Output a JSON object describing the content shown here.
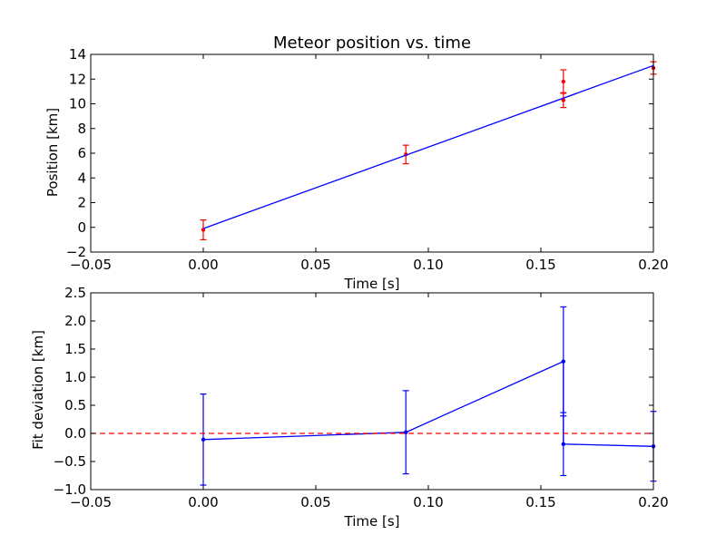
{
  "chart_data": [
    {
      "type": "line",
      "title": "Meteor position vs. time",
      "xlabel": "Time [s]",
      "ylabel": "Position [km]",
      "xlim": [
        -0.05,
        0.2
      ],
      "ylim": [
        -2,
        14
      ],
      "xticks": [
        "−0.05",
        "0.00",
        "0.05",
        "0.10",
        "0.15",
        "0.20"
      ],
      "xtick_values": [
        -0.05,
        0.0,
        0.05,
        0.1,
        0.15,
        0.2
      ],
      "yticks": [
        "−2",
        "0",
        "2",
        "4",
        "6",
        "8",
        "10",
        "12",
        "14"
      ],
      "ytick_values": [
        -2,
        0,
        2,
        4,
        6,
        8,
        10,
        12,
        14
      ],
      "series": [
        {
          "kind": "errorbar",
          "color": "#ff0000",
          "x": [
            0.0,
            0.09,
            0.16,
            0.16,
            0.2
          ],
          "y": [
            -0.2,
            5.9,
            11.8,
            10.3,
            12.9
          ],
          "yerr": [
            0.8,
            0.75,
            0.95,
            0.6,
            0.5
          ]
        },
        {
          "kind": "fit-line",
          "color": "#0000ff",
          "x": [
            0.0,
            0.2
          ],
          "y": [
            -0.1,
            13.1
          ]
        }
      ]
    },
    {
      "type": "line",
      "title": "",
      "xlabel": "Time [s]",
      "ylabel": "Fit deviation [km]",
      "xlim": [
        -0.05,
        0.2
      ],
      "ylim": [
        -1.0,
        2.5
      ],
      "xticks": [
        "−0.05",
        "0.00",
        "0.05",
        "0.10",
        "0.15",
        "0.20"
      ],
      "xtick_values": [
        -0.05,
        0.0,
        0.05,
        0.1,
        0.15,
        0.2
      ],
      "yticks": [
        "−1.0",
        "−0.5",
        "0.0",
        "0.5",
        "1.0",
        "1.5",
        "2.0",
        "2.5"
      ],
      "ytick_values": [
        -1.0,
        -0.5,
        0.0,
        0.5,
        1.0,
        1.5,
        2.0,
        2.5
      ],
      "series": [
        {
          "kind": "errorbar-line",
          "color": "#0000ff",
          "x": [
            0.0,
            0.09,
            0.16,
            0.16,
            0.2
          ],
          "y": [
            -0.11,
            0.02,
            1.28,
            -0.19,
            -0.23
          ],
          "yerr": [
            0.81,
            0.74,
            0.97,
            0.56,
            0.62
          ]
        },
        {
          "kind": "zero-line",
          "color": "#ff0000",
          "dashed": true,
          "y": 0.0
        }
      ]
    }
  ]
}
